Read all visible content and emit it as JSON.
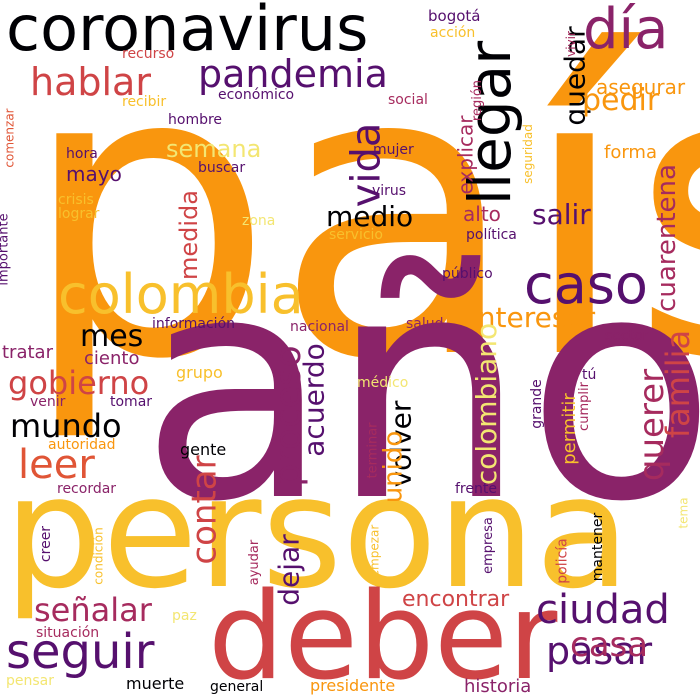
{
  "word_cloud": {
    "palette": {
      "orange": "#f9960e",
      "yellow": "#f8c02c",
      "pale_yellow": "#f3e672",
      "purple": "#8a2369",
      "red": "#cf4446",
      "dark_purple": "#56106e",
      "black": "#000004",
      "coral": "#e05536",
      "magenta": "#a62b5e"
    },
    "words": [
      {
        "text": "país",
        "color": "#f9960e"
      },
      {
        "text": "año",
        "color": "#8a2369"
      },
      {
        "text": "persona",
        "color": "#f8c02c"
      },
      {
        "text": "coronavirus",
        "color": "#000004"
      },
      {
        "text": "deber",
        "color": "#cf4446"
      },
      {
        "text": "día",
        "color": "#8a2369"
      },
      {
        "text": "llegar",
        "color": "#000004"
      },
      {
        "text": "colombia",
        "color": "#f8c02c"
      },
      {
        "text": "caso",
        "color": "#56106e"
      },
      {
        "text": "pandemia",
        "color": "#56106e"
      },
      {
        "text": "hablar",
        "color": "#cf4446"
      },
      {
        "text": "seguir",
        "color": "#56106e"
      },
      {
        "text": "vida",
        "color": "#56106e"
      },
      {
        "text": "ciudad",
        "color": "#56106e"
      },
      {
        "text": "pasar",
        "color": "#56106e"
      },
      {
        "text": "quedar",
        "color": "#000004"
      },
      {
        "text": "pedir",
        "color": "#f9960e"
      },
      {
        "text": "gobierno",
        "color": "#cf4446"
      },
      {
        "text": "leer",
        "color": "#e05536"
      },
      {
        "text": "medio",
        "color": "#000004"
      },
      {
        "text": "mundo",
        "color": "#000004"
      },
      {
        "text": "proceso",
        "color": "#8a2369"
      },
      {
        "text": "contar",
        "color": "#cf4446"
      },
      {
        "text": "mes",
        "color": "#000004"
      },
      {
        "text": "querer",
        "color": "#a62b5e"
      },
      {
        "text": "familia",
        "color": "#cf4446"
      },
      {
        "text": "cuarentena",
        "color": "#a62b5e"
      },
      {
        "text": "interesar",
        "color": "#f9960e"
      },
      {
        "text": "salir",
        "color": "#56106e"
      },
      {
        "text": "colombiano",
        "color": "#f3e672"
      },
      {
        "text": "acuerdo",
        "color": "#56106e"
      },
      {
        "text": "volver",
        "color": "#000004"
      },
      {
        "text": "unido",
        "color": "#f9960e"
      },
      {
        "text": "casa",
        "color": "#a62b5e"
      },
      {
        "text": "señalar",
        "color": "#a62b5e"
      },
      {
        "text": "dejar",
        "color": "#56106e"
      },
      {
        "text": "encontrar",
        "color": "#cf4446"
      },
      {
        "text": "semana",
        "color": "#f3e672"
      },
      {
        "text": "medida",
        "color": "#cf4446"
      },
      {
        "text": "asegurar",
        "color": "#f9960e"
      },
      {
        "text": "explicar",
        "color": "#a62b5e"
      },
      {
        "text": "forma",
        "color": "#f9960e"
      },
      {
        "text": "alto",
        "color": "#a62b5e"
      },
      {
        "text": "mayo",
        "color": "#56106e"
      },
      {
        "text": "bogotá",
        "color": "#56106e"
      },
      {
        "text": "acción",
        "color": "#f8c02c"
      },
      {
        "text": "vivir",
        "color": "#a62b5e"
      },
      {
        "text": "recurso",
        "color": "#cf4446"
      },
      {
        "text": "recibir",
        "color": "#f8c02c"
      },
      {
        "text": "económico",
        "color": "#56106e"
      },
      {
        "text": "hombre",
        "color": "#56106e"
      },
      {
        "text": "social",
        "color": "#a62b5e"
      },
      {
        "text": "región",
        "color": "#a62b5e"
      },
      {
        "text": "seguridad",
        "color": "#f8c02c"
      },
      {
        "text": "hora",
        "color": "#56106e"
      },
      {
        "text": "buscar",
        "color": "#56106e"
      },
      {
        "text": "mujer",
        "color": "#56106e"
      },
      {
        "text": "crisis",
        "color": "#f8c02c"
      },
      {
        "text": "lograr",
        "color": "#f8c02c"
      },
      {
        "text": "virus",
        "color": "#56106e"
      },
      {
        "text": "zona",
        "color": "#f3e672"
      },
      {
        "text": "servicio",
        "color": "#f8c02c"
      },
      {
        "text": "política",
        "color": "#56106e"
      },
      {
        "text": "comenzar",
        "color": "#e05536"
      },
      {
        "text": "importante",
        "color": "#56106e"
      },
      {
        "text": "público",
        "color": "#56106e"
      },
      {
        "text": "información",
        "color": "#56106e"
      },
      {
        "text": "nacional",
        "color": "#8a2369"
      },
      {
        "text": "salud",
        "color": "#8a2369"
      },
      {
        "text": "sector",
        "color": "#8a2369"
      },
      {
        "text": "tratar",
        "color": "#8a2369"
      },
      {
        "text": "ciento",
        "color": "#8a2369"
      },
      {
        "text": "grupo",
        "color": "#f8c02c"
      },
      {
        "text": "médico",
        "color": "#f3e672"
      },
      {
        "text": "tú",
        "color": "#56106e"
      },
      {
        "text": "cumplir",
        "color": "#a62b5e"
      },
      {
        "text": "permitir",
        "color": "#f8c02c"
      },
      {
        "text": "grande",
        "color": "#56106e"
      },
      {
        "text": "venir",
        "color": "#8a2369"
      },
      {
        "text": "tomar",
        "color": "#56106e"
      },
      {
        "text": "autoridad",
        "color": "#f9960e"
      },
      {
        "text": "gente",
        "color": "#000004"
      },
      {
        "text": "terminar",
        "color": "#a62b5e"
      },
      {
        "text": "recordar",
        "color": "#8a2369"
      },
      {
        "text": "frente",
        "color": "#56106e"
      },
      {
        "text": "creer",
        "color": "#56106e"
      },
      {
        "text": "condición",
        "color": "#f8c02c"
      },
      {
        "text": "ayudar",
        "color": "#a62b5e"
      },
      {
        "text": "empezar",
        "color": "#f8c02c"
      },
      {
        "text": "empresa",
        "color": "#56106e"
      },
      {
        "text": "policía",
        "color": "#cf4446"
      },
      {
        "text": "mantener",
        "color": "#000004"
      },
      {
        "text": "tema",
        "color": "#f3e672"
      },
      {
        "text": "paz",
        "color": "#f3e672"
      },
      {
        "text": "situación",
        "color": "#a62b5e"
      },
      {
        "text": "pensar",
        "color": "#f3e672"
      },
      {
        "text": "muerte",
        "color": "#000004"
      },
      {
        "text": "general",
        "color": "#000004"
      },
      {
        "text": "presidente",
        "color": "#f9960e"
      },
      {
        "text": "historia",
        "color": "#8a2369"
      }
    ]
  }
}
